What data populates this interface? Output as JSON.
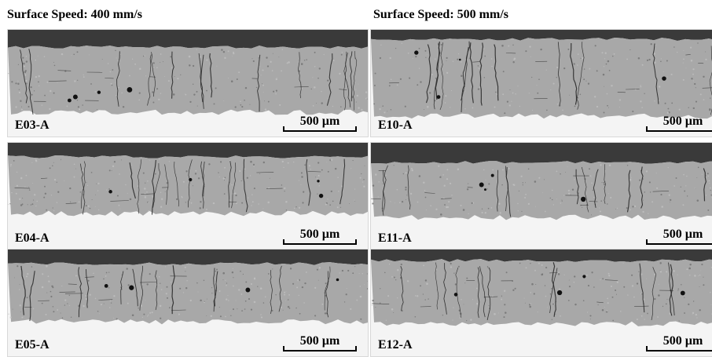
{
  "titles": {
    "left": "Surface Speed: 400 mm/s",
    "right": "Surface Speed: 500 mm/s"
  },
  "panels": [
    {
      "id": "p1",
      "sample": "E03-A",
      "scale": "500 µm"
    },
    {
      "id": "p2",
      "sample": "E10-A",
      "scale": "500 µm"
    },
    {
      "id": "p3",
      "sample": "E04-A",
      "scale": "500 µm"
    },
    {
      "id": "p4",
      "sample": "E11-A",
      "scale": "500 µm"
    },
    {
      "id": "p5",
      "sample": "E05-A",
      "scale": "500 µm"
    },
    {
      "id": "p6",
      "sample": "E12-A",
      "scale": "500 µm"
    }
  ],
  "colors": {
    "resin": "#3a3a3a",
    "coating": "#a8a8a8",
    "substrate": "#f4f4f4",
    "crack": "#222222"
  }
}
